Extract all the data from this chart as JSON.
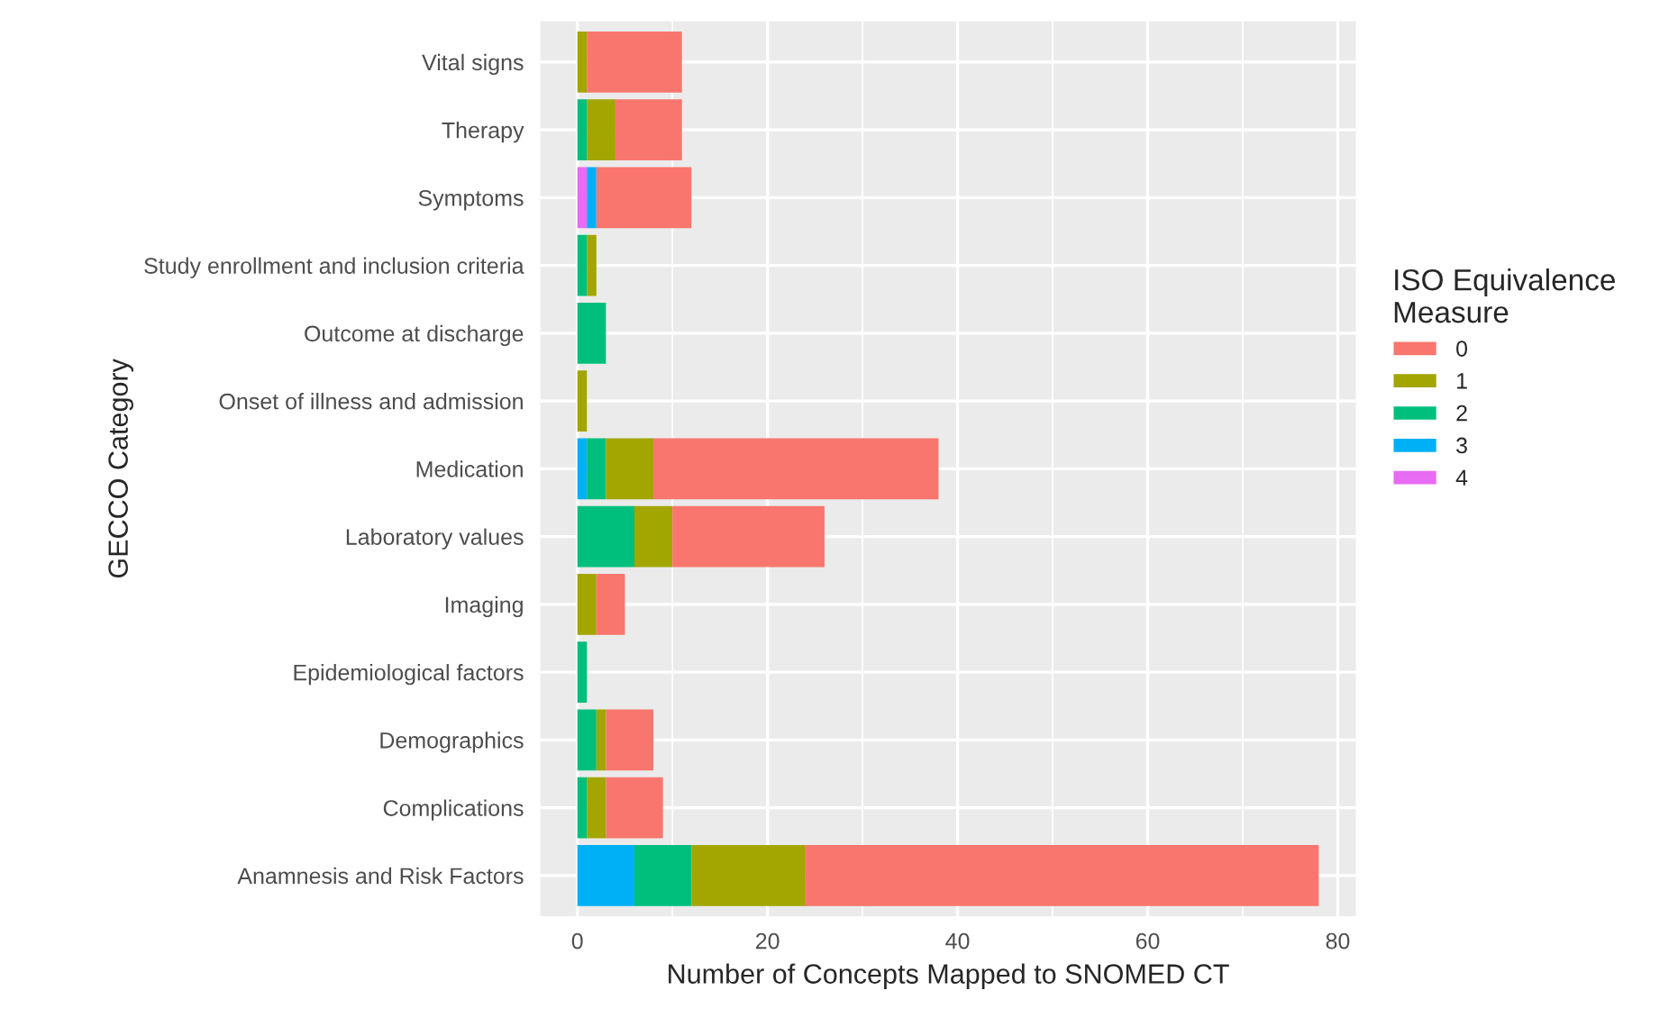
{
  "chart_data": {
    "type": "bar",
    "orientation": "horizontal",
    "stacked": true,
    "xlabel": "Number of Concepts Mapped to SNOMED CT",
    "ylabel": "GECCO Category",
    "legend_title": "ISO Equivalence\nMeasure",
    "categories": [
      "Vital signs",
      "Therapy",
      "Symptoms",
      "Study enrollment and inclusion criteria",
      "Outcome at discharge",
      "Onset of illness and admission",
      "Medication",
      "Laboratory values",
      "Imaging",
      "Epidemiological factors",
      "Demographics",
      "Complications",
      "Anamnesis and Risk Factors"
    ],
    "series": [
      {
        "name": "4",
        "color": "#e76bf3",
        "values": [
          0,
          0,
          1,
          0,
          0,
          0,
          0,
          0,
          0,
          0,
          0,
          0,
          0
        ]
      },
      {
        "name": "3",
        "color": "#00b0f6",
        "values": [
          0,
          0,
          1,
          0,
          0,
          0,
          1,
          0,
          0,
          0,
          0,
          0,
          6
        ]
      },
      {
        "name": "2",
        "color": "#00bf7d",
        "values": [
          0,
          1,
          0,
          1,
          3,
          0,
          2,
          6,
          0,
          1,
          2,
          1,
          6
        ]
      },
      {
        "name": "1",
        "color": "#a3a500",
        "values": [
          1,
          3,
          0,
          1,
          0,
          1,
          5,
          4,
          2,
          0,
          1,
          2,
          12
        ]
      },
      {
        "name": "0",
        "color": "#f8766d",
        "values": [
          10,
          7,
          10,
          0,
          0,
          0,
          30,
          16,
          3,
          0,
          5,
          6,
          54
        ]
      }
    ],
    "xlim": [
      -3.9,
      81.9
    ],
    "xticks": [
      0,
      20,
      40,
      60,
      80
    ],
    "grid": true,
    "legend": "right"
  }
}
